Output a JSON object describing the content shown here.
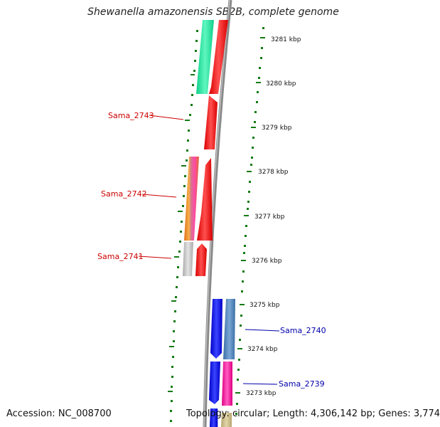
{
  "title": "Shewanella amazonensis SB2B, complete genome",
  "footer": {
    "accession": "Accession: NC_008700",
    "topology": "Topology: circular; Length: 4,306,142 bp; Genes: 3,774"
  },
  "scale": {
    "ticks": [
      "3281 kbp",
      "3280 kbp",
      "3279 kbp",
      "3278 kbp",
      "3277 kbp",
      "3276 kbp",
      "3275 kbp",
      "3274 kbp",
      "3273 kbp"
    ]
  },
  "gene_labels": {
    "left": [
      "Sama_2743",
      "Sama_2742",
      "Sama_2741"
    ],
    "right": [
      "Sama_2740",
      "Sama_2739"
    ]
  },
  "colors": {
    "left_label": "#cc0000",
    "right_label": "#0000aa",
    "backbone": "#888888",
    "tick_green": "#137a13",
    "cog_green": "#1ee39a",
    "cds_red": "#ff1111",
    "cog_orange": "#f08020",
    "cog_pink": "#ff1aa0",
    "cog_grey": "#c4c4c4",
    "cds_blue": "#0a10f0",
    "cog_steel": "#4a80b8",
    "cog_tan": "#c9b78a",
    "cog_lavender": "#c0c8f0"
  }
}
